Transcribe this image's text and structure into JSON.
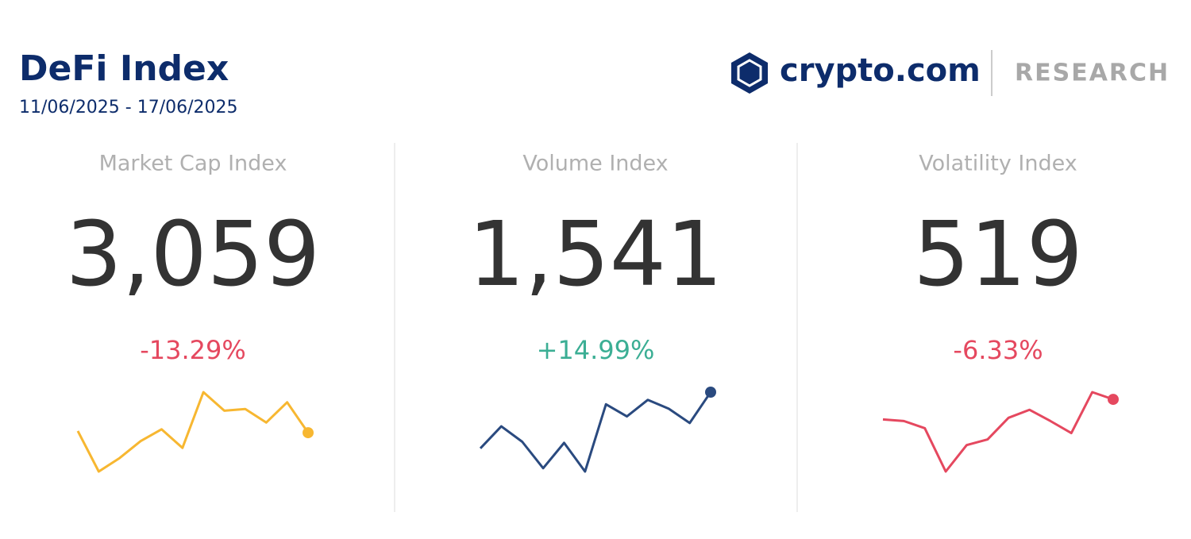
{
  "header": {
    "title": "DeFi Index",
    "date_range": "11/06/2025 - 17/06/2025"
  },
  "logo": {
    "brand": "crypto.com",
    "section": "RESEARCH"
  },
  "cards": [
    {
      "label": "Market Cap Index",
      "value": "3,059",
      "change": "-13.29%",
      "color": "#e5485f",
      "sparkline": {
        "type": "line",
        "color": "#f7b731",
        "values": [
          83,
          59,
          67,
          77,
          84,
          73,
          106,
          95,
          96,
          88,
          100,
          82
        ]
      }
    },
    {
      "label": "Volume Index",
      "value": "1,541",
      "change": "+14.99%",
      "color": "#3bae94",
      "sparkline": {
        "type": "line",
        "color": "#2a4a7f",
        "values": [
          49,
          69,
          55,
          31,
          54,
          28,
          89,
          78,
          93,
          85,
          72,
          100
        ]
      }
    },
    {
      "label": "Volatility Index",
      "value": "519",
      "change": "-6.33%",
      "color": "#e5485f",
      "sparkline": {
        "type": "line",
        "color": "#e5485f",
        "values": [
          72,
          70,
          61,
          7,
          40,
          47,
          74,
          84,
          70,
          55,
          106,
          97
        ]
      }
    }
  ]
}
